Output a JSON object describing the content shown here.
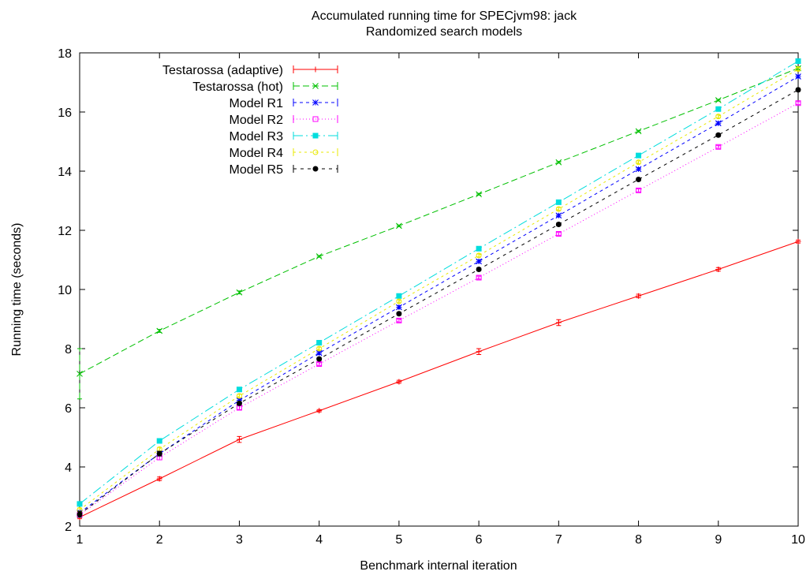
{
  "chart_data": {
    "type": "line",
    "title": "Accumulated running time for SPECjvm98: jack",
    "subtitle": "Randomized search models",
    "xlabel": "Benchmark internal iteration",
    "ylabel": "Running time (seconds)",
    "xlim": [
      1,
      10
    ],
    "ylim": [
      2,
      18
    ],
    "xticks": [
      1,
      2,
      3,
      4,
      5,
      6,
      7,
      8,
      9,
      10
    ],
    "yticks": [
      2,
      4,
      6,
      8,
      10,
      12,
      14,
      16,
      18
    ],
    "grid": false,
    "legend_position": "top-left",
    "x": [
      1,
      2,
      3,
      4,
      5,
      6,
      7,
      8,
      9,
      10
    ],
    "series": [
      {
        "name": "Testarossa (adaptive)",
        "color": "#ff0000",
        "dash": "",
        "marker": "plus",
        "values": [
          2.3,
          3.6,
          4.93,
          5.9,
          6.88,
          7.9,
          8.88,
          9.78,
          10.68,
          11.62
        ],
        "errors": [
          0.05,
          0.06,
          0.1,
          0.04,
          0.05,
          0.1,
          0.1,
          0.06,
          0.06,
          0.05
        ]
      },
      {
        "name": "Testarossa (hot)",
        "color": "#00c000",
        "dash": "8,4",
        "marker": "cross",
        "values": [
          7.15,
          8.6,
          9.9,
          11.12,
          12.15,
          13.22,
          14.3,
          15.35,
          16.4,
          17.48
        ],
        "errors": [
          0.85,
          0.05,
          0.05,
          0.03,
          0.03,
          0.03,
          0.03,
          0.03,
          0.03,
          0.05
        ]
      },
      {
        "name": "Model R1",
        "color": "#0000ff",
        "dash": "4,4",
        "marker": "star",
        "values": [
          2.45,
          4.45,
          6.25,
          7.85,
          9.4,
          10.95,
          12.5,
          14.07,
          15.62,
          17.2
        ],
        "errors": [
          0.08,
          0.08,
          0.06,
          0.05,
          0.05,
          0.05,
          0.05,
          0.05,
          0.05,
          0.05
        ]
      },
      {
        "name": "Model R2",
        "color": "#ff00ff",
        "dash": "1,3",
        "marker": "square-open",
        "values": [
          2.38,
          4.32,
          6.0,
          7.48,
          8.95,
          10.4,
          11.88,
          13.35,
          14.82,
          16.3
        ],
        "errors": [
          0.08,
          0.08,
          0.06,
          0.05,
          0.05,
          0.05,
          0.05,
          0.05,
          0.05,
          0.05
        ]
      },
      {
        "name": "Model R3",
        "color": "#00dddd",
        "dash": "12,4,2,4",
        "marker": "square-filled",
        "values": [
          2.75,
          4.88,
          6.62,
          8.2,
          9.78,
          11.38,
          12.95,
          14.53,
          16.1,
          17.72
        ],
        "errors": [
          0.06,
          0.06,
          0.06,
          0.05,
          0.05,
          0.05,
          0.05,
          0.05,
          0.05,
          0.05
        ]
      },
      {
        "name": "Model R4",
        "color": "#e8e800",
        "dash": "3,4",
        "marker": "circle-open",
        "values": [
          2.55,
          4.6,
          6.4,
          8.0,
          9.6,
          11.15,
          12.72,
          14.3,
          15.85,
          17.45
        ],
        "errors": [
          0.06,
          0.06,
          0.06,
          0.05,
          0.05,
          0.05,
          0.05,
          0.05,
          0.05,
          0.05
        ]
      },
      {
        "name": "Model R5",
        "color": "#000000",
        "dash": "4,5",
        "marker": "circle-filled",
        "values": [
          2.4,
          4.45,
          6.15,
          7.65,
          9.18,
          10.68,
          12.2,
          13.72,
          15.22,
          16.75
        ],
        "errors": [
          0.1,
          0.08,
          0.06,
          0.05,
          0.05,
          0.05,
          0.05,
          0.05,
          0.05,
          0.05
        ]
      }
    ]
  }
}
